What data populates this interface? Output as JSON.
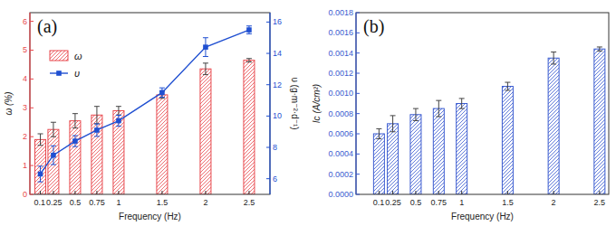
{
  "chart_data": [
    {
      "type": "bar",
      "annotations": [
        "(a)"
      ],
      "x_label": "Frequency (Hz)",
      "y_label": "ω (%)",
      "y2_label": "υ (g·m⁻²·d⁻¹)",
      "x": [
        0.1,
        0.25,
        0.5,
        0.75,
        1,
        1.5,
        2,
        2.5
      ],
      "series": [
        {
          "name": "ω",
          "type": "bar",
          "color": "#e8474c",
          "values": [
            1.9,
            2.25,
            2.55,
            2.75,
            2.9,
            3.45,
            4.35,
            4.65
          ],
          "errors": [
            0.2,
            0.25,
            0.25,
            0.3,
            0.15,
            0.12,
            0.2,
            0.06
          ]
        },
        {
          "name": "υ",
          "type": "line",
          "axis": "y2",
          "color": "#1f4fd1",
          "marker": "square",
          "values": [
            6.3,
            7.5,
            8.4,
            9.1,
            9.7,
            11.5,
            14.4,
            15.5
          ],
          "errors": [
            0.5,
            0.6,
            0.35,
            0.4,
            0.35,
            0.3,
            0.6,
            0.25
          ]
        }
      ],
      "xlim": [
        -0.02,
        2.74
      ],
      "xticks": [
        0.1,
        0.25,
        0.5,
        0.75,
        1,
        1.5,
        2,
        2.5
      ],
      "ylim": [
        0,
        6.3
      ],
      "yticks": [
        0,
        1,
        2,
        3,
        4,
        5,
        6
      ],
      "y2lim": [
        5,
        16.6
      ],
      "y2ticks": [
        6,
        8,
        10,
        12,
        14,
        16
      ],
      "legend": "upper left",
      "grid": false
    },
    {
      "type": "bar",
      "annotations": [
        "(b)"
      ],
      "x_label": "Frequency (Hz)",
      "y_label": "Ic (A/cm²)",
      "x": [
        0.1,
        0.25,
        0.5,
        0.75,
        1,
        1.5,
        2,
        2.5
      ],
      "values": [
        0.0006,
        0.0007,
        0.00079,
        0.00085,
        0.0009,
        0.00107,
        0.00135,
        0.00144
      ],
      "errors": [
        5e-05,
        8e-05,
        6e-05,
        8e-05,
        5e-05,
        4e-05,
        6e-05,
        2e-05
      ],
      "color": "#3a5bd0",
      "xlim": [
        -0.15,
        2.6
      ],
      "xticks": [
        0.1,
        0.25,
        0.5,
        0.75,
        1,
        1.5,
        2,
        2.5
      ],
      "ylim": [
        0,
        0.0018
      ],
      "yticks": [
        {
          "value": 0,
          "label": "0.0000"
        },
        {
          "value": 0.0002,
          "label": "0.0002"
        },
        {
          "value": 0.0004,
          "label": "0.0004"
        },
        {
          "value": 0.0006,
          "label": "0.0006"
        },
        {
          "value": 0.0008,
          "label": "0.0008"
        },
        {
          "value": 0.001,
          "label": "0.0010"
        },
        {
          "value": 0.0012,
          "label": "0.0012"
        },
        {
          "value": 0.0014,
          "label": "0.0014"
        },
        {
          "value": 0.0016,
          "label": "0.0016"
        },
        {
          "value": 0.0018,
          "label": "0.0018"
        }
      ],
      "grid": false
    }
  ]
}
